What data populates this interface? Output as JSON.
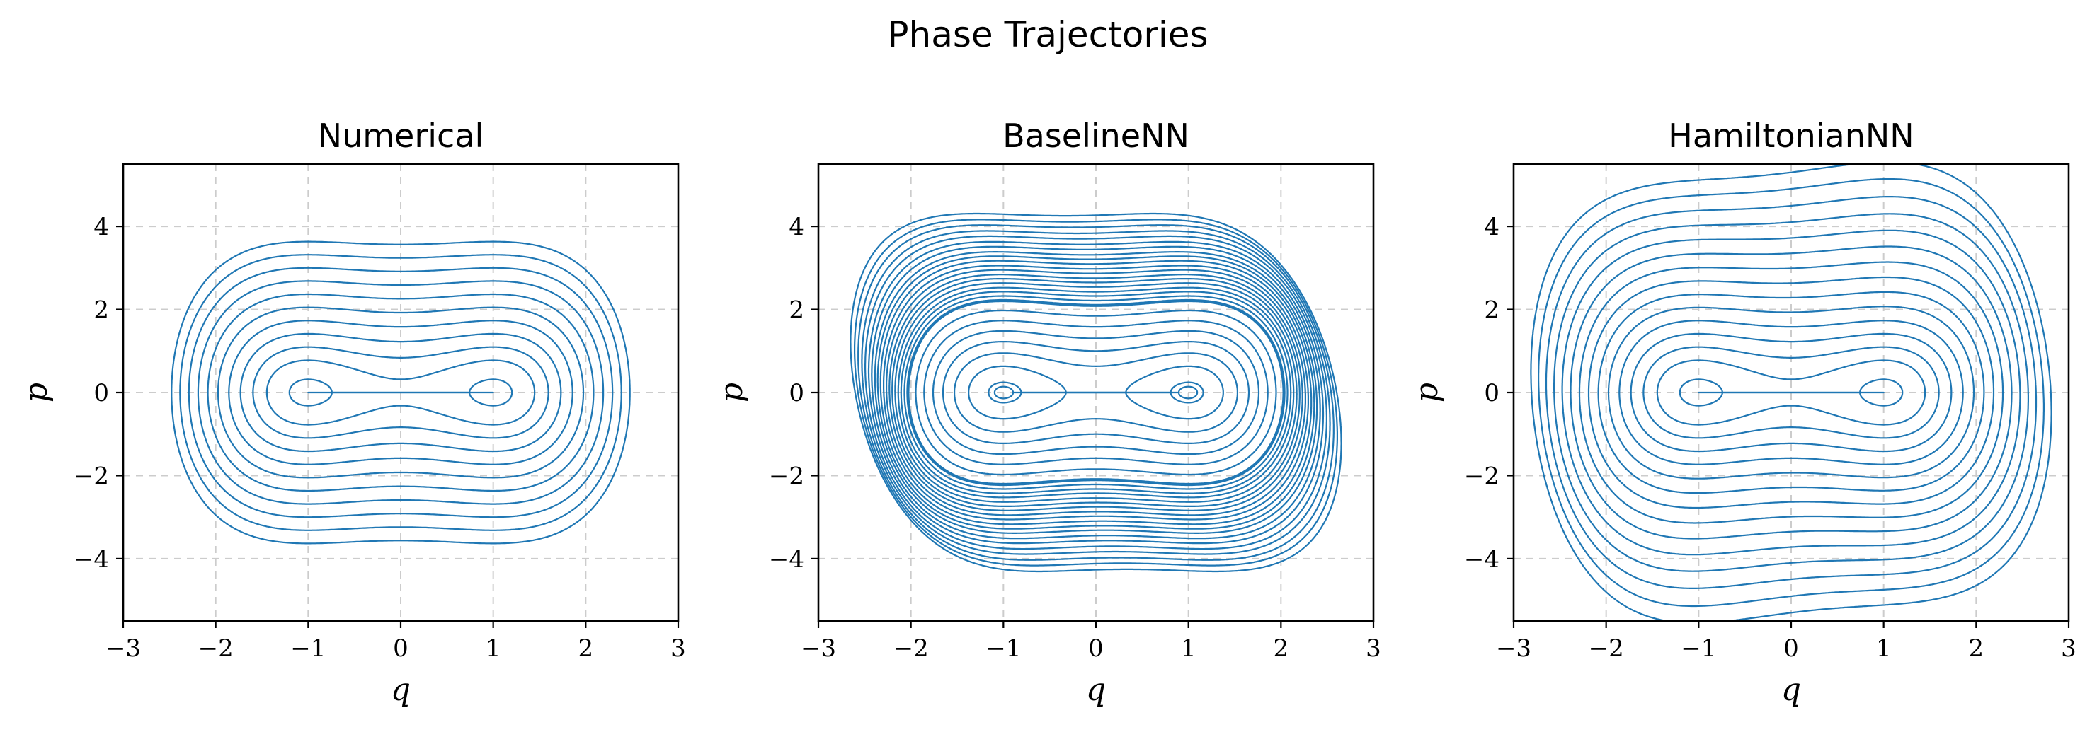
{
  "chart_data": {
    "title": "Phase Trajectories",
    "type": "line",
    "panels": [
      {
        "title": "Numerical",
        "xlabel": "q",
        "ylabel": "p",
        "xlim": [
          -3,
          3
        ],
        "ylim": [
          -5.5,
          5.5
        ],
        "xticks": [
          -3,
          -2,
          -1,
          0,
          1,
          2,
          3
        ],
        "yticks": [
          -4,
          -2,
          0,
          2,
          4
        ],
        "grid": true,
        "series_color": "#1f77b4",
        "energy_levels": [
          -0.22,
          -0.15,
          -0.07,
          0.0,
          0.05,
          0.3,
          0.6,
          1.0,
          1.5,
          2.1,
          2.8,
          3.6,
          4.5,
          5.5,
          6.6
        ],
        "distortion": "none"
      },
      {
        "title": "BaselineNN",
        "xlabel": "q",
        "ylabel": "p",
        "xlim": [
          -3,
          3
        ],
        "ylim": [
          -5.5,
          5.5
        ],
        "xticks": [
          -3,
          -2,
          -1,
          0,
          1,
          2,
          3
        ],
        "yticks": [
          -4,
          -2,
          0,
          2,
          4
        ],
        "grid": true,
        "series_color": "#1f77b4",
        "energy_levels": [
          -0.24,
          -0.22,
          -0.2,
          -0.17,
          -0.14,
          -0.1,
          -0.06,
          -0.02,
          0.01,
          0.03,
          0.2,
          0.45,
          0.75,
          1.1,
          1.5,
          1.95,
          2.45,
          2.7,
          2.95,
          3.2,
          3.5,
          3.8,
          4.1,
          4.45,
          4.8,
          5.2,
          5.6,
          6.0,
          6.5,
          7.0,
          7.6,
          8.2,
          8.9,
          9.6,
          10.4
        ],
        "distortion": "spiral"
      },
      {
        "title": "HamiltonianNN",
        "xlabel": "q",
        "ylabel": "p",
        "xlim": [
          -3,
          3
        ],
        "ylim": [
          -5.5,
          5.5
        ],
        "xticks": [
          -3,
          -2,
          -1,
          0,
          1,
          2,
          3
        ],
        "yticks": [
          -4,
          -2,
          0,
          2,
          4
        ],
        "grid": true,
        "series_color": "#1f77b4",
        "energy_levels": [
          -0.22,
          -0.15,
          -0.07,
          0.0,
          0.05,
          0.3,
          0.6,
          1.0,
          1.5,
          2.1,
          2.8,
          3.6,
          4.5,
          5.5,
          6.6,
          7.8,
          9.1,
          10.5,
          12.0
        ],
        "distortion": "skew"
      }
    ]
  }
}
